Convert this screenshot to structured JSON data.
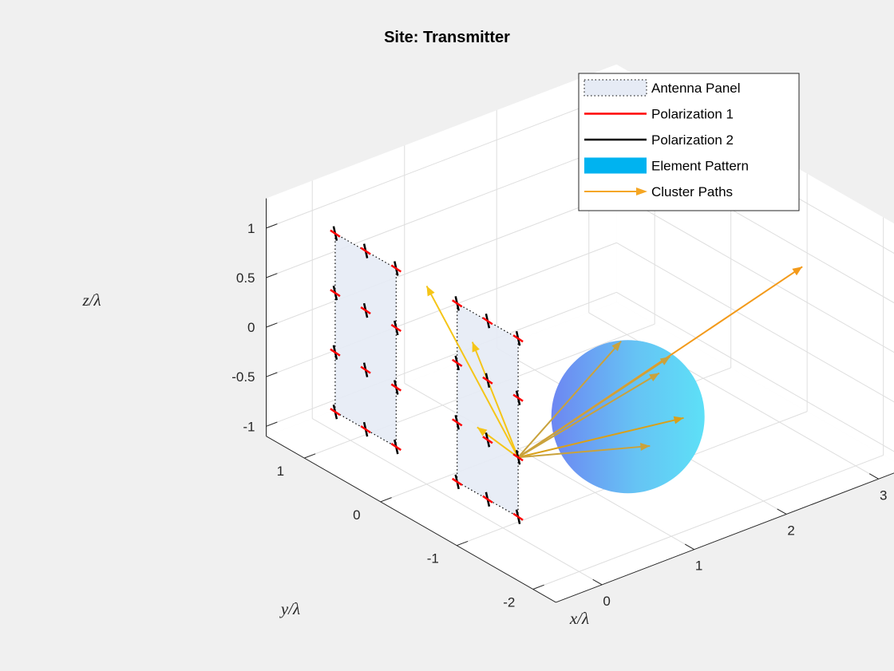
{
  "chart_data": {
    "type": "scatter",
    "view": "3d",
    "title": "Site: Transmitter",
    "xlabel": "x/λ",
    "ylabel": "y/λ",
    "zlabel": "z/λ",
    "x_ticks": [
      "0",
      "1",
      "2",
      "3"
    ],
    "y_ticks": [
      "-2",
      "-1",
      "0",
      "1"
    ],
    "z_ticks": [
      "-1",
      "-0.5",
      "0",
      "0.5",
      "1"
    ],
    "xlim": [
      -0.5,
      3.3
    ],
    "ylim": [
      -2.3,
      1.5
    ],
    "zlim": [
      -1.1,
      1.3
    ],
    "grid": true,
    "legend_position": "top-right",
    "legend": [
      {
        "label": "Antenna Panel",
        "kind": "patch",
        "color": "#e6ebf5"
      },
      {
        "label": "Polarization 1",
        "kind": "line",
        "color": "#ff0000"
      },
      {
        "label": "Polarization 2",
        "kind": "line",
        "color": "#000000"
      },
      {
        "label": "Element Pattern",
        "kind": "patch",
        "color": "#00b3f0"
      },
      {
        "label": "Cluster Paths",
        "kind": "arrow",
        "color": "#f5a623"
      }
    ],
    "panels": [
      {
        "name": "panel-1",
        "y_range": [
          0.4,
          1.2
        ],
        "z_range": [
          -0.9,
          0.9
        ]
      },
      {
        "name": "panel-2",
        "y_range": [
          -1.2,
          -0.4
        ],
        "z_range": [
          -0.9,
          0.9
        ]
      }
    ],
    "elements": [
      {
        "y": 1.2,
        "z": 0.9
      },
      {
        "y": 0.8,
        "z": 0.9
      },
      {
        "y": 0.4,
        "z": 0.9
      },
      {
        "y": 1.2,
        "z": 0.3
      },
      {
        "y": 0.8,
        "z": 0.3
      },
      {
        "y": 0.4,
        "z": 0.3
      },
      {
        "y": 1.2,
        "z": -0.3
      },
      {
        "y": 0.8,
        "z": -0.3
      },
      {
        "y": 0.4,
        "z": -0.3
      },
      {
        "y": 1.2,
        "z": -0.9
      },
      {
        "y": 0.8,
        "z": -0.9
      },
      {
        "y": 0.4,
        "z": -0.9
      },
      {
        "y": -0.4,
        "z": 0.9
      },
      {
        "y": -0.8,
        "z": 0.9
      },
      {
        "y": -1.2,
        "z": 0.9
      },
      {
        "y": -0.4,
        "z": 0.3
      },
      {
        "y": -0.8,
        "z": 0.3
      },
      {
        "y": -1.2,
        "z": 0.3
      },
      {
        "y": -0.4,
        "z": -0.3
      },
      {
        "y": -0.8,
        "z": -0.3
      },
      {
        "y": -1.2,
        "z": -0.3
      },
      {
        "y": -0.4,
        "z": -0.9
      },
      {
        "y": -0.8,
        "z": -0.9
      },
      {
        "y": -1.2,
        "z": -0.9
      }
    ],
    "pattern_sphere": {
      "center": [
        1.2,
        -1.2,
        -0.3
      ],
      "radius": 0.9
    },
    "cluster_origin": [
      0,
      -1.2,
      -0.3
    ],
    "cluster_paths": [
      {
        "end": [
          3.0,
          -1.3,
          0.6
        ],
        "color": "#f39a1a"
      },
      {
        "end": [
          0.0,
          0.0,
          0.9
        ],
        "color": "#f5c518"
      },
      {
        "end": [
          0.0,
          -0.6,
          0.6
        ],
        "color": "#f5c518"
      },
      {
        "end": [
          1.3,
          -1.8,
          -0.1
        ],
        "color": "#d9a019"
      },
      {
        "end": [
          1.4,
          -1.5,
          0.35
        ],
        "color": "#c9a23c"
      },
      {
        "end": [
          1.2,
          -1.1,
          0.4
        ],
        "color": "#c9a23c"
      },
      {
        "end": [
          1.2,
          -1.6,
          0.3
        ],
        "color": "#c9a23c"
      },
      {
        "end": [
          1.1,
          -1.6,
          -0.4
        ],
        "color": "#c9a23c"
      },
      {
        "end": [
          0.3,
          -0.3,
          -0.5
        ],
        "color": "#f5c518"
      }
    ]
  }
}
